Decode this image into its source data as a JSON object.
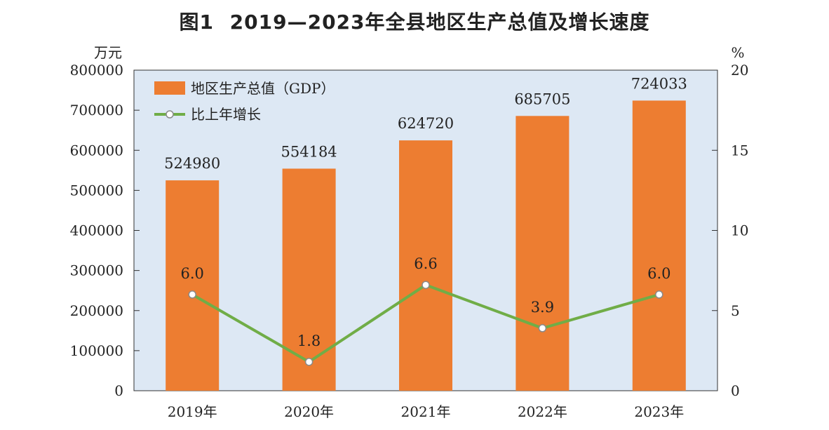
{
  "chart_data": {
    "type": "bar",
    "title": "2019—2023年全县地区生产总值及增长速度",
    "title_prefix": "图1",
    "categories": [
      "2019年",
      "2020年",
      "2021年",
      "2022年",
      "2023年"
    ],
    "left_axis": {
      "unit": "万元",
      "ylim": [
        0,
        800000
      ],
      "ticks": [
        "0",
        "100000",
        "200000",
        "300000",
        "400000",
        "500000",
        "600000",
        "700000",
        "800000"
      ]
    },
    "right_axis": {
      "unit": "%",
      "ylim": [
        0,
        20
      ],
      "ticks": [
        "0",
        "5",
        "10",
        "15",
        "20"
      ]
    },
    "series": [
      {
        "name": "地区生产总值（GDP）",
        "type": "bar",
        "axis": "left",
        "color": "#ed7d31",
        "values": [
          524980,
          554184,
          624720,
          685705,
          724033
        ],
        "labels": [
          "524980",
          "554184",
          "624720",
          "685705",
          "724033"
        ]
      },
      {
        "name": "比上年增长",
        "type": "line",
        "axis": "right",
        "color": "#70ad47",
        "values": [
          6.0,
          1.8,
          6.6,
          3.9,
          6.0
        ],
        "labels": [
          "6.0",
          "1.8",
          "6.6",
          "3.9",
          "6.0"
        ]
      }
    ],
    "plot_background": "#dde8f4",
    "legend_position": "top-left",
    "grid": false
  }
}
